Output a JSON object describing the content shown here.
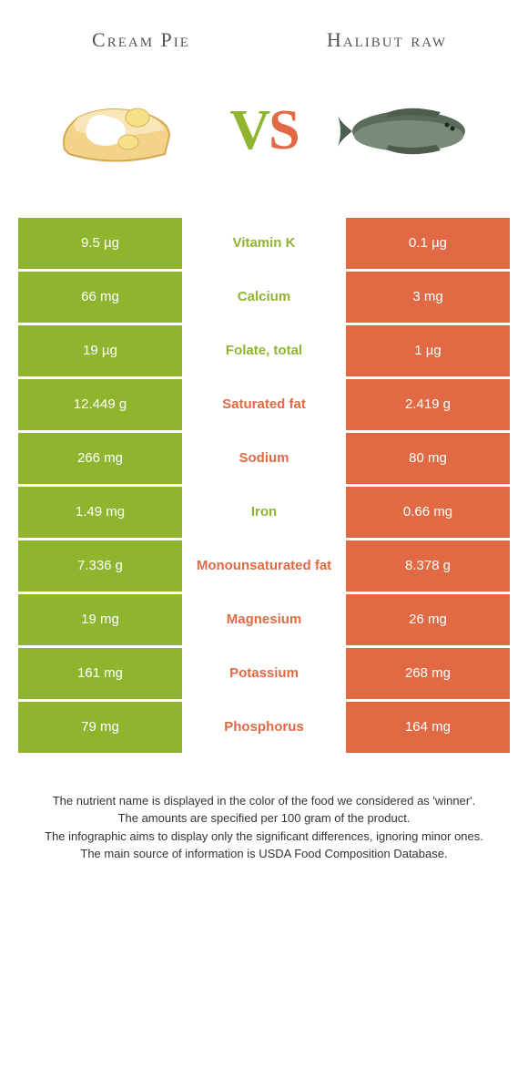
{
  "left_food": {
    "name": "Cream Pie",
    "color": "#8fb52f"
  },
  "right_food": {
    "name": "Halibut raw",
    "color": "#e16a45"
  },
  "vs_label": "vs",
  "rows": [
    {
      "nutrient": "Vitamin K",
      "left": "9.5 µg",
      "right": "0.1 µg",
      "winner": "left"
    },
    {
      "nutrient": "Calcium",
      "left": "66 mg",
      "right": "3 mg",
      "winner": "left"
    },
    {
      "nutrient": "Folate, total",
      "left": "19 µg",
      "right": "1 µg",
      "winner": "left"
    },
    {
      "nutrient": "Saturated fat",
      "left": "12.449 g",
      "right": "2.419 g",
      "winner": "right"
    },
    {
      "nutrient": "Sodium",
      "left": "266 mg",
      "right": "80 mg",
      "winner": "right"
    },
    {
      "nutrient": "Iron",
      "left": "1.49 mg",
      "right": "0.66 mg",
      "winner": "left"
    },
    {
      "nutrient": "Monounsaturated fat",
      "left": "7.336 g",
      "right": "8.378 g",
      "winner": "right"
    },
    {
      "nutrient": "Magnesium",
      "left": "19 mg",
      "right": "26 mg",
      "winner": "right"
    },
    {
      "nutrient": "Potassium",
      "left": "161 mg",
      "right": "268 mg",
      "winner": "right"
    },
    {
      "nutrient": "Phosphorus",
      "left": "79 mg",
      "right": "164 mg",
      "winner": "right"
    }
  ],
  "footnotes": [
    "The nutrient name is displayed in the color of the food we considered as 'winner'.",
    "The amounts are specified per 100 gram of the product.",
    "The infographic aims to display only the significant differences, ignoring minor ones.",
    "The main source of information is USDA Food Composition Database."
  ]
}
